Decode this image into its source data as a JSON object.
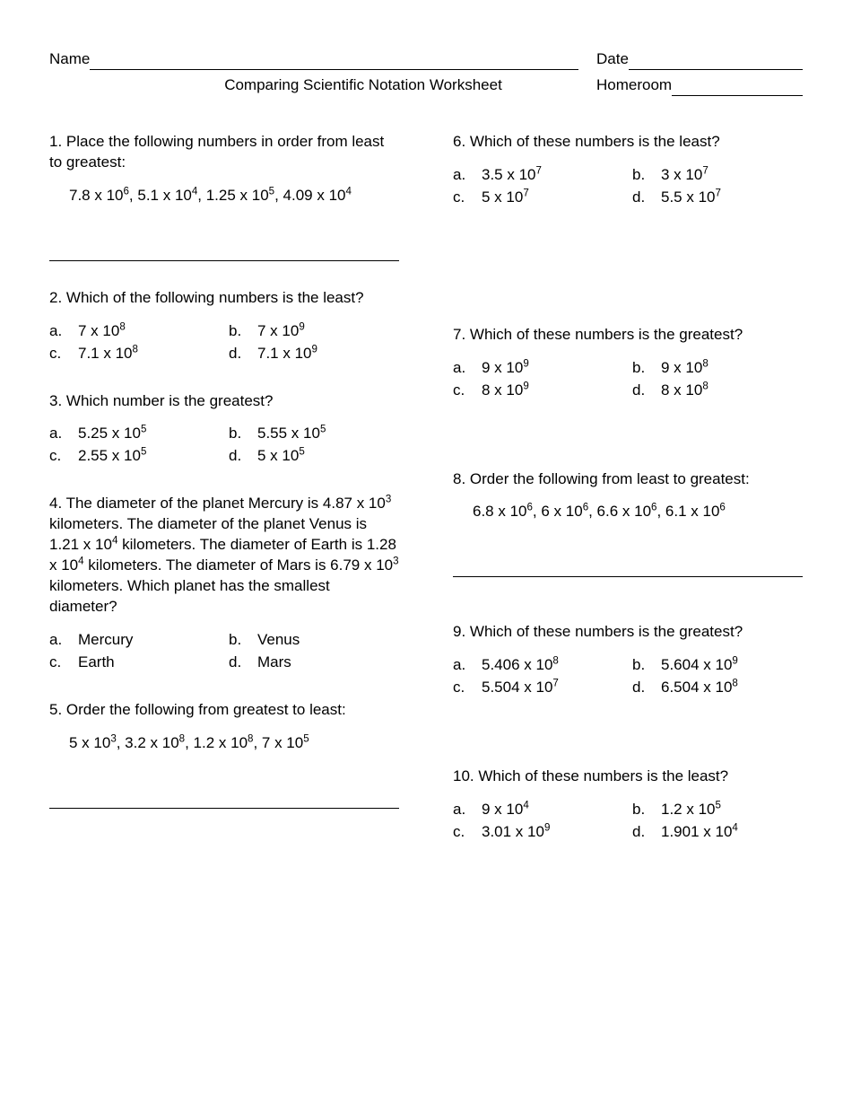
{
  "header": {
    "name_label": "Name",
    "date_label": "Date",
    "homeroom_label": "Homeroom",
    "title": "Comparing Scientific Notation Worksheet"
  },
  "q1": {
    "text": "1.  Place the following numbers in order from least to greatest:",
    "expr": "7.8 x 10<sup>6</sup>, 5.1 x 10<sup>4</sup>, 1.25 x 10<sup>5</sup>, 4.09 x 10<sup>4</sup>"
  },
  "q2": {
    "text": "2.  Which of the following numbers is the least?",
    "a": "7 x 10<sup>8</sup>",
    "b": "7 x 10<sup>9</sup>",
    "c": "7.1 x 10<sup>8</sup>",
    "d": "7.1 x 10<sup>9</sup>"
  },
  "q3": {
    "text": "3.  Which number is the greatest?",
    "a": "5.25 x 10<sup>5</sup>",
    "b": "5.55 x 10<sup>5</sup>",
    "c": "2.55 x 10<sup>5</sup>",
    "d": "5 x 10<sup>5</sup>"
  },
  "q4": {
    "text": "4.  The diameter of the planet Mercury is 4.87 x 10<sup>3</sup> kilometers.  The diameter of the planet Venus is 1.21 x 10<sup>4</sup> kilometers.  The diameter of Earth is 1.28 x 10<sup>4</sup> kilometers.  The diameter of Mars is 6.79 x 10<sup>3</sup> kilometers.  Which planet has the smallest diameter?",
    "a": "Mercury",
    "b": "Venus",
    "c": "Earth",
    "d": "Mars"
  },
  "q5": {
    "text": "5.  Order the following from greatest to least:",
    "expr": "5 x 10<sup>3</sup>, 3.2 x 10<sup>8</sup>, 1.2 x 10<sup>8</sup>, 7 x 10<sup>5</sup>"
  },
  "q6": {
    "text": "6.  Which of these numbers is the least?",
    "a": "3.5 x 10<sup>7</sup>",
    "b": "3 x 10<sup>7</sup>",
    "c": "5 x 10<sup>7</sup>",
    "d": "5.5 x 10<sup>7</sup>"
  },
  "q7": {
    "text": "7.  Which of these numbers is the greatest?",
    "a": "9 x 10<sup>9</sup>",
    "b": "9 x 10<sup>8</sup>",
    "c": "8 x 10<sup>9</sup>",
    "d": "8 x 10<sup>8</sup>"
  },
  "q8": {
    "text": "8.  Order the following from least to greatest:",
    "expr": "6.8 x 10<sup>6</sup>, 6 x 10<sup>6</sup>, 6.6 x 10<sup>6</sup>, 6.1 x 10<sup>6</sup>"
  },
  "q9": {
    "text": "9.  Which of these numbers is the greatest?",
    "a": "5.406 x 10<sup>8</sup>",
    "b": "5.604 x 10<sup>9</sup>",
    "c": "5.504 x 10<sup>7</sup>",
    "d": "6.504 x 10<sup>8</sup>"
  },
  "q10": {
    "text": "10.  Which of these numbers is the least?",
    "a": "9 x 10<sup>4</sup>",
    "b": "1.2 x 10<sup>5</sup>",
    "c": "3.01 x 10<sup>9</sup>",
    "d": "1.901 x 10<sup>4</sup>"
  },
  "letters": {
    "a": "a.",
    "b": "b.",
    "c": "c.",
    "d": "d."
  }
}
